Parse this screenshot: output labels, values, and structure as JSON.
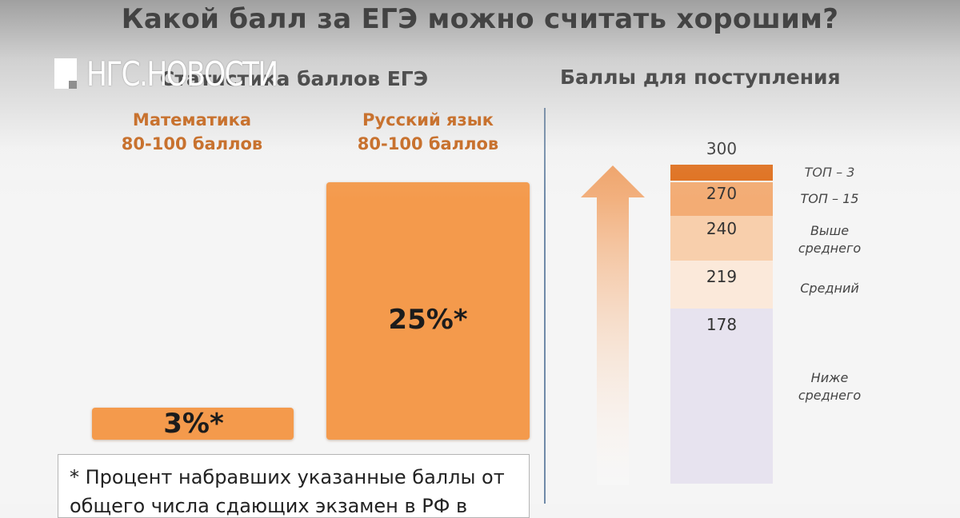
{
  "header": {
    "title": "Какой балл за ЕГЭ можно считать хорошим?",
    "logo_text": "НГС.НОВОСТИ"
  },
  "left_panel": {
    "subtitle": "Статистика баллов ЕГЭ",
    "footnote": "* Процент набравших указанные баллы от общего числа сдающих экзамен в РФ в"
  },
  "right_panel": {
    "subtitle": "Баллы для поступления"
  },
  "chart_data": [
    {
      "type": "bar",
      "title": "Статистика баллов ЕГЭ",
      "categories": [
        [
          "Математика",
          "80-100 баллов"
        ],
        [
          "Русский язык",
          "80-100 баллов"
        ]
      ],
      "values": [
        3,
        25
      ],
      "value_labels": [
        "3%*",
        "25%*"
      ],
      "unit": "%",
      "ylim": [
        0,
        25
      ],
      "colors": [
        "#f49a4c",
        "#f49a4c"
      ],
      "label_color": "#c8722f",
      "grid": false
    },
    {
      "type": "bar",
      "title": "Баллы для поступления",
      "stacked": true,
      "ylim": [
        0,
        300
      ],
      "top_value": "300",
      "segments": [
        {
          "from": 285,
          "to": 300,
          "value_label": "",
          "level": "ТОП – 3",
          "color": "#e06f1c"
        },
        {
          "from": 270,
          "to": 285,
          "value_label": "270",
          "level": "ТОП – 15",
          "color": "#f3ac74"
        },
        {
          "from": 240,
          "to": 270,
          "value_label": "240",
          "level": "Выше среднего",
          "color": "#f8cfac"
        },
        {
          "from": 219,
          "to": 240,
          "value_label": "219",
          "level": "Средний",
          "color": "#fbe9da"
        },
        {
          "from": 0,
          "to": 219,
          "value_label": "178",
          "level": "Ниже среднего",
          "color": "#e7e3ef"
        }
      ]
    }
  ]
}
